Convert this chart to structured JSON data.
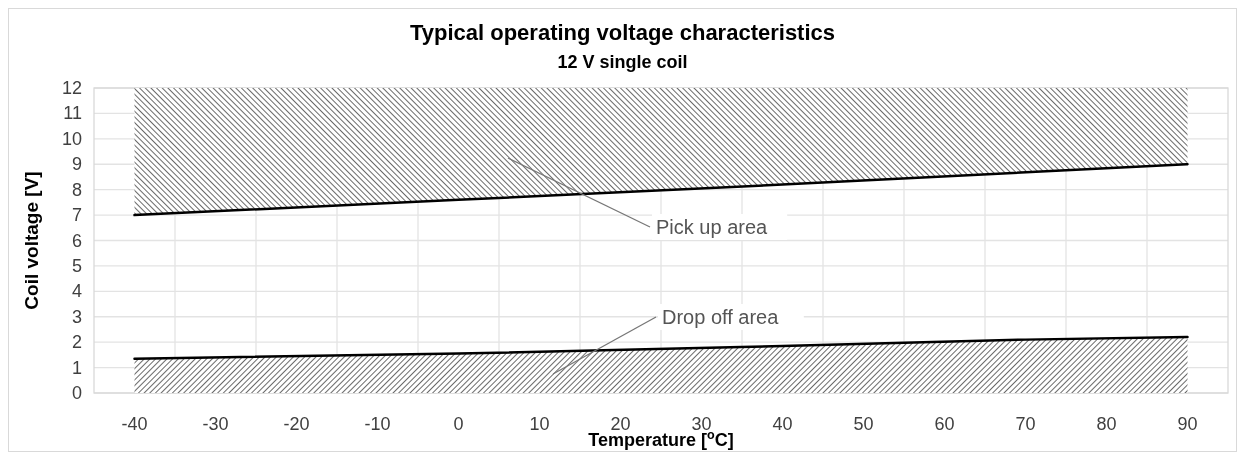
{
  "chart_data": {
    "type": "line",
    "title": "Typical operating voltage characteristics",
    "subtitle": "12 V single coil",
    "xlabel": "Temperature [$^{o}$C]",
    "ylabel": "Coil voltage [V]",
    "xlim": [
      -45,
      95
    ],
    "ylim": [
      0,
      12
    ],
    "xticks": [
      -40,
      {
        "value": -35,
        "label": null
      },
      -30,
      {
        "value": -25,
        "label": null
      },
      -20,
      {
        "value": -15,
        "label": null
      },
      -10,
      {
        "value": -5,
        "label": null
      },
      0,
      {
        "value": 5,
        "label": null
      },
      10,
      {
        "value": 15,
        "label": null
      },
      20,
      {
        "value": 25,
        "label": null
      },
      30,
      {
        "value": 35,
        "label": null
      },
      40,
      {
        "value": 45,
        "label": null
      },
      50,
      {
        "value": 55,
        "label": null
      },
      60,
      {
        "value": 65,
        "label": null
      },
      70,
      {
        "value": 75,
        "label": null
      },
      80,
      {
        "value": 85,
        "label": null
      },
      90
    ],
    "yticks": [
      0,
      1,
      2,
      3,
      4,
      5,
      6,
      7,
      8,
      9,
      10,
      11,
      12
    ],
    "grid": true,
    "marker": "none",
    "line_style": "solid",
    "series": [
      {
        "color": "#000000",
        "x": [
          -40,
          0,
          40,
          90
        ],
        "values": [
          7.0,
          7.6,
          8.2,
          9.0
        ],
        "lower": [
          7.0,
          7.6,
          8.2,
          9.0
        ],
        "upper": [
          12,
          12,
          12,
          12
        ]
      },
      {
        "color": "#000000",
        "x": [
          -40,
          0,
          40,
          70,
          90
        ],
        "values": [
          1.35,
          1.55,
          1.85,
          2.1,
          2.2
        ],
        "lower": [
          0,
          0,
          0,
          0,
          0
        ],
        "upper": [
          1.35,
          1.55,
          1.85,
          2.1,
          2.2
        ]
      }
    ],
    "annotations": [
      "Pick up area",
      "Drop off area"
    ]
  }
}
